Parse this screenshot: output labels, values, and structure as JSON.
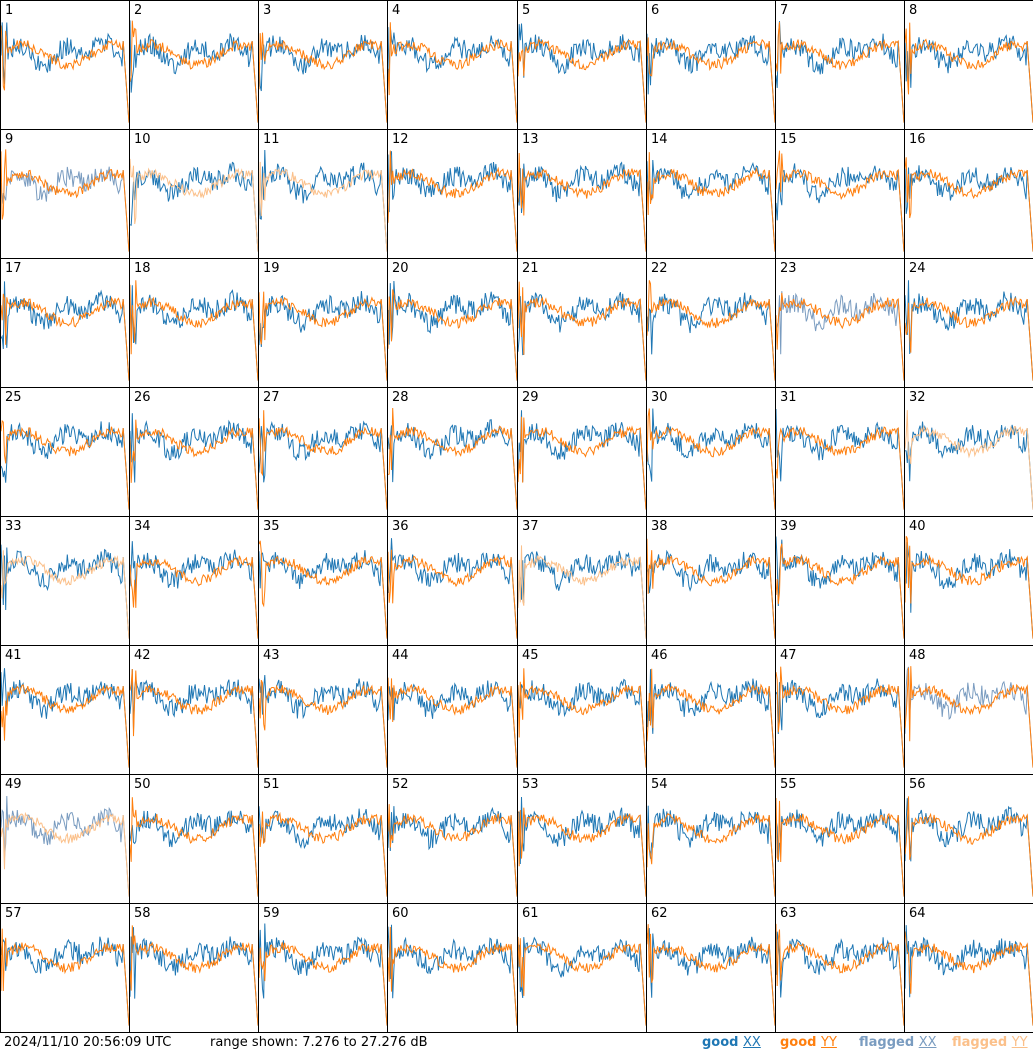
{
  "chart_data": {
    "type": "line",
    "layout": "8x8 small-multiples grid of per-antenna spectra",
    "panels": [
      1,
      2,
      3,
      4,
      5,
      6,
      7,
      8,
      9,
      10,
      11,
      12,
      13,
      14,
      15,
      16,
      17,
      18,
      19,
      20,
      21,
      22,
      23,
      24,
      25,
      26,
      27,
      28,
      29,
      30,
      31,
      32,
      33,
      34,
      35,
      36,
      37,
      38,
      39,
      40,
      41,
      42,
      43,
      44,
      45,
      46,
      47,
      48,
      49,
      50,
      51,
      52,
      53,
      54,
      55,
      56,
      57,
      58,
      59,
      60,
      61,
      62,
      63,
      64
    ],
    "flagged_xx_panels": [
      9,
      23,
      48,
      49
    ],
    "flagged_yy_panels": [
      10,
      11,
      32,
      33,
      37,
      49
    ],
    "ylim_db": [
      7.276,
      27.276
    ],
    "series": [
      {
        "name": "good XX",
        "color": "#1f77b4"
      },
      {
        "name": "good YY",
        "color": "#ff7f0e"
      },
      {
        "name": "flagged XX",
        "color": "#7a9cc0"
      },
      {
        "name": "flagged YY",
        "color": "#fbc08a"
      }
    ]
  },
  "footer": {
    "timestamp": "2024/11/10 20:56:09 UTC",
    "range_text": "range shown: 7.276 to 27.276 dB",
    "legend": {
      "good": "good",
      "flagged": "flagged",
      "xx": "XX",
      "yy": "YY"
    }
  }
}
